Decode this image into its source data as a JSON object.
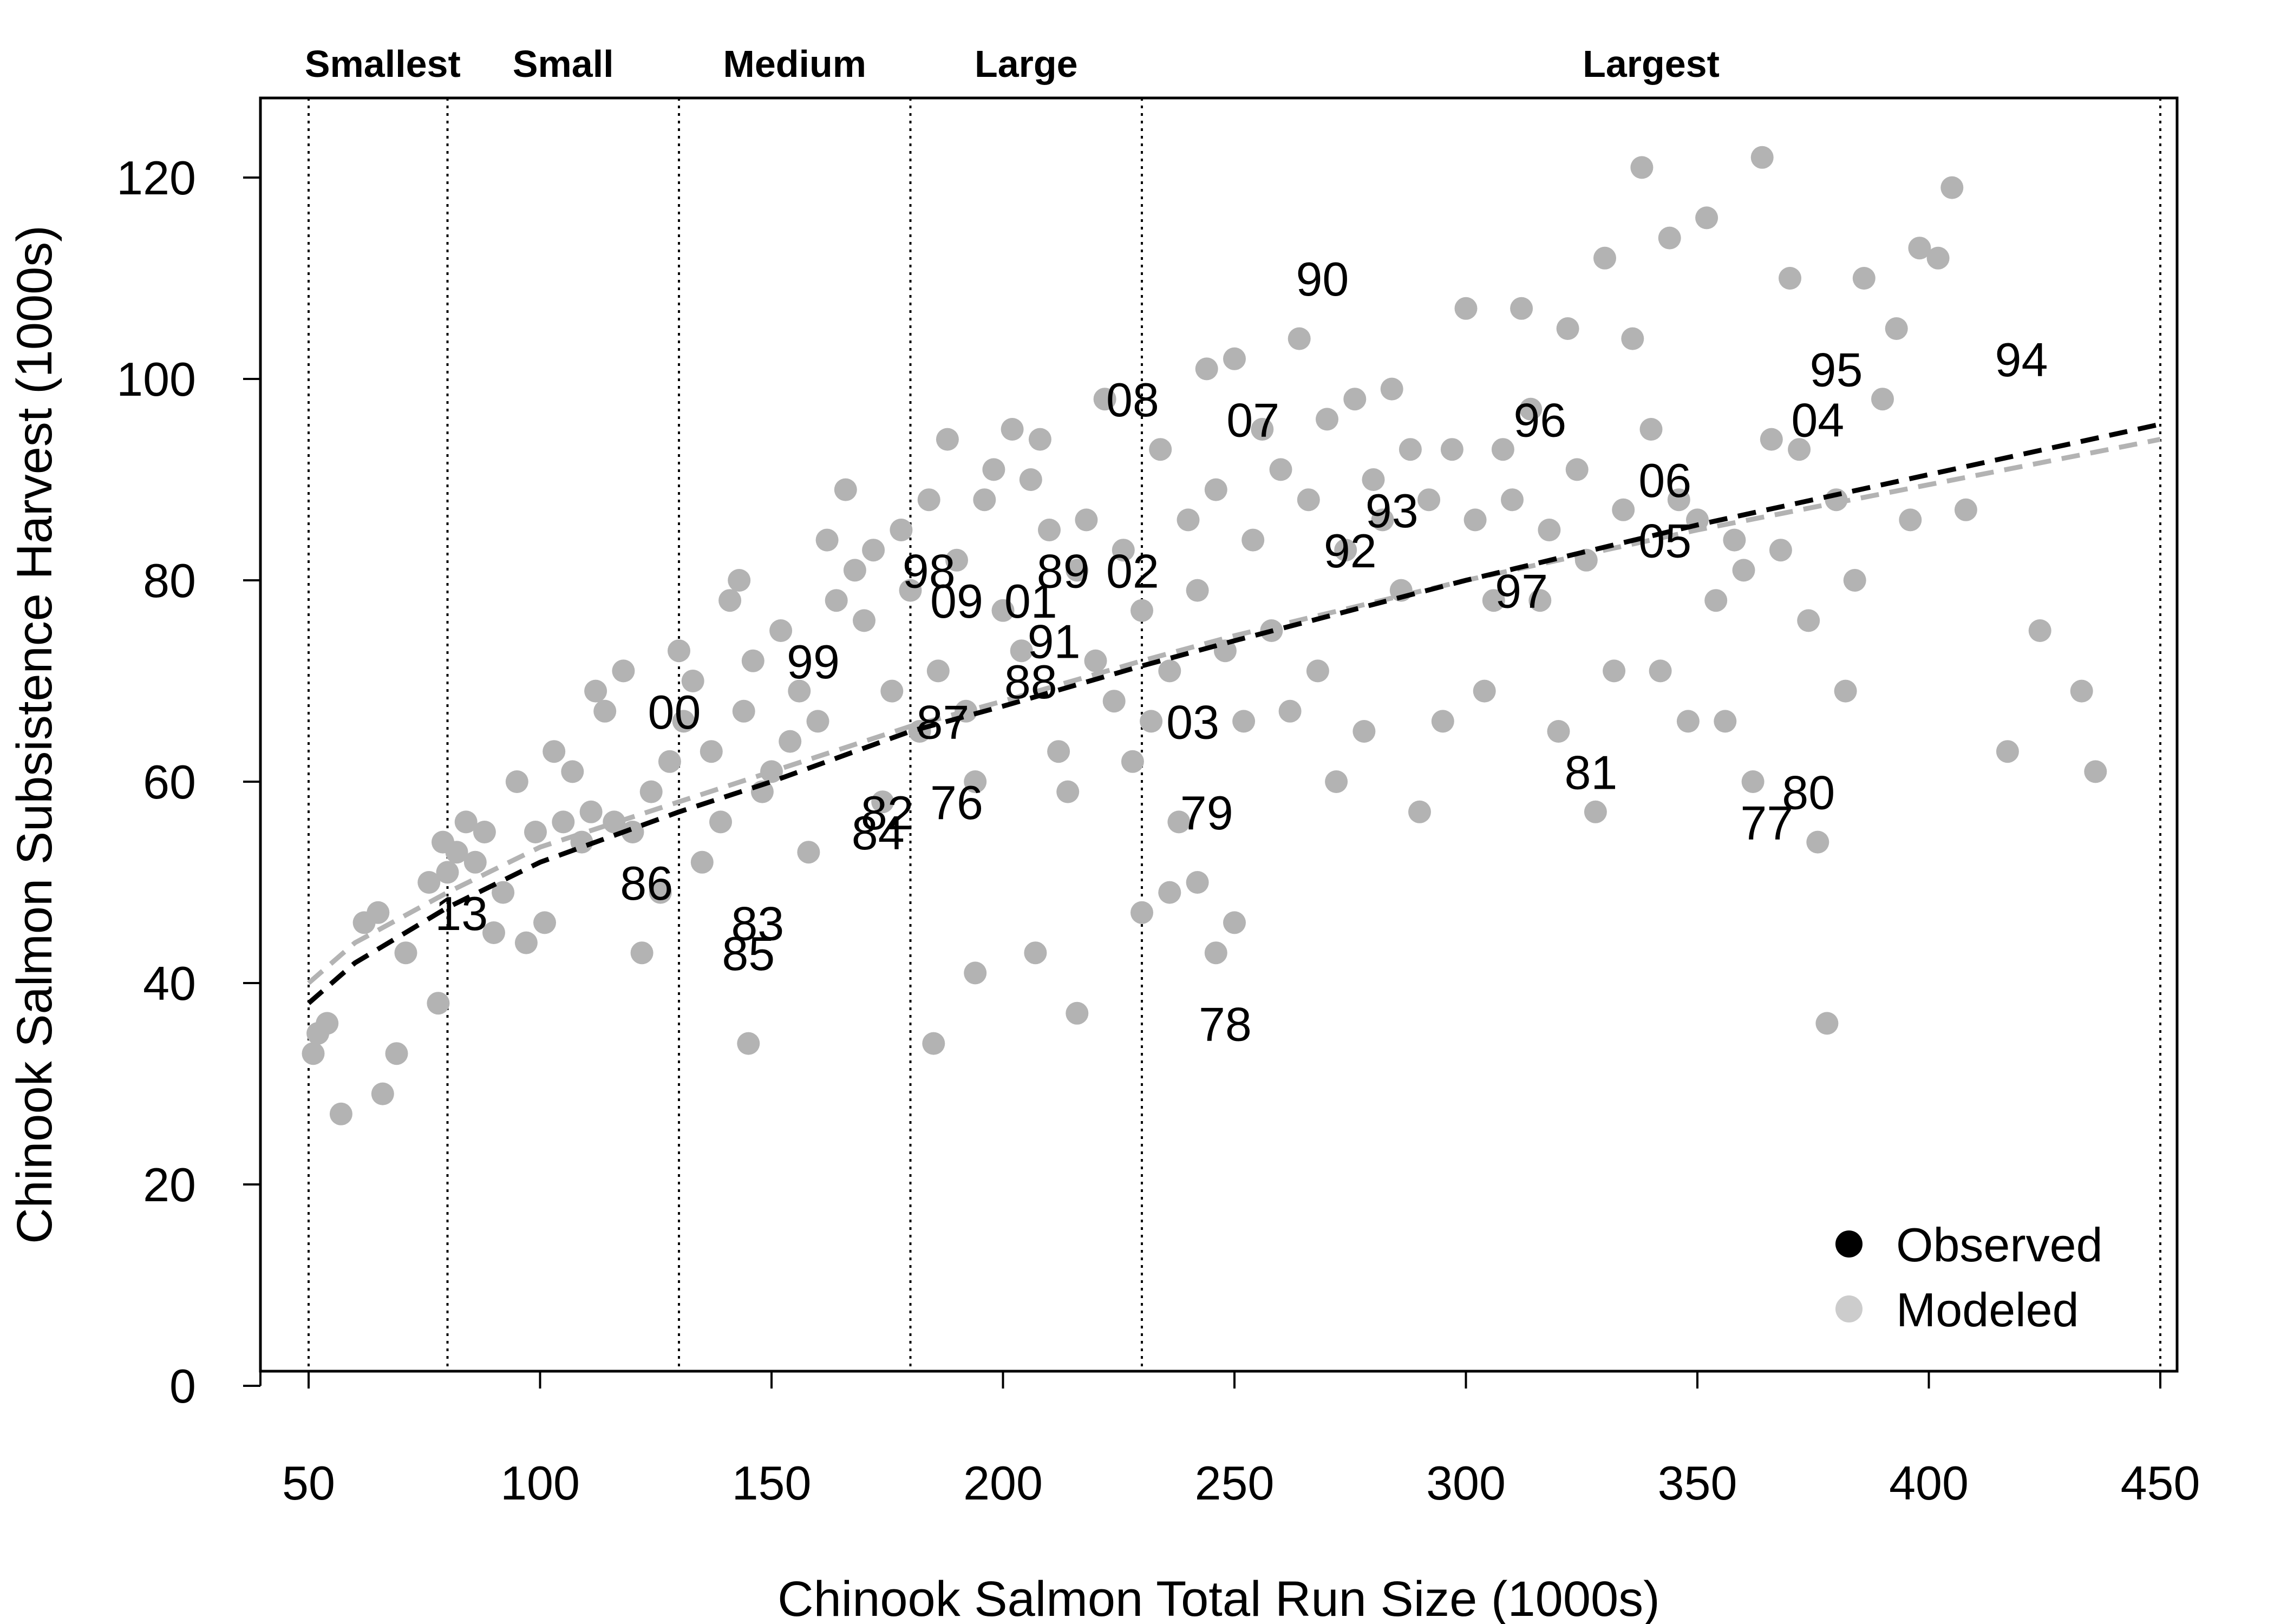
{
  "chart_data": {
    "type": "scatter",
    "xlabel": "Chinook Salmon Total Run Size (1000s)",
    "ylabel": "Chinook Salmon Subsistence Harvest (1000s)",
    "xlim": [
      40,
      455
    ],
    "ylim": [
      0,
      128
    ],
    "xticks": [
      50,
      100,
      150,
      200,
      250,
      300,
      350,
      400,
      450
    ],
    "yticks": [
      0,
      20,
      40,
      60,
      80,
      100,
      120
    ],
    "grid": false,
    "legend_position": "bottom-right",
    "legend": [
      {
        "label": "Observed",
        "color": "#000000"
      },
      {
        "label": "Modeled",
        "color": "#cccccc"
      }
    ],
    "categories": [
      {
        "label": "Smallest",
        "from": 50,
        "to": 80
      },
      {
        "label": "Small",
        "from": 80,
        "to": 130
      },
      {
        "label": "Medium",
        "from": 130,
        "to": 180
      },
      {
        "label": "Large",
        "from": 180,
        "to": 230
      },
      {
        "label": "Largest",
        "from": 230,
        "to": 450
      }
    ],
    "boundaries": [
      50,
      80,
      130,
      180,
      230,
      450
    ],
    "modeled_points": [
      [
        51,
        33
      ],
      [
        52,
        35
      ],
      [
        54,
        36
      ],
      [
        57,
        27
      ],
      [
        62,
        46
      ],
      [
        65,
        47
      ],
      [
        66,
        29
      ],
      [
        69,
        33
      ],
      [
        71,
        43
      ],
      [
        76,
        50
      ],
      [
        78,
        38
      ],
      [
        79,
        54
      ],
      [
        80,
        51
      ],
      [
        82,
        53
      ],
      [
        84,
        56
      ],
      [
        86,
        52
      ],
      [
        88,
        55
      ],
      [
        90,
        45
      ],
      [
        92,
        49
      ],
      [
        95,
        60
      ],
      [
        97,
        44
      ],
      [
        99,
        55
      ],
      [
        101,
        46
      ],
      [
        103,
        63
      ],
      [
        105,
        56
      ],
      [
        107,
        61
      ],
      [
        109,
        54
      ],
      [
        111,
        57
      ],
      [
        112,
        69
      ],
      [
        114,
        67
      ],
      [
        116,
        56
      ],
      [
        118,
        71
      ],
      [
        120,
        55
      ],
      [
        122,
        43
      ],
      [
        124,
        59
      ],
      [
        126,
        49
      ],
      [
        128,
        62
      ],
      [
        130,
        73
      ],
      [
        131,
        66
      ],
      [
        133,
        70
      ],
      [
        135,
        52
      ],
      [
        137,
        63
      ],
      [
        139,
        56
      ],
      [
        141,
        78
      ],
      [
        143,
        80
      ],
      [
        144,
        67
      ],
      [
        146,
        72
      ],
      [
        148,
        59
      ],
      [
        150,
        61
      ],
      [
        152,
        75
      ],
      [
        154,
        64
      ],
      [
        156,
        69
      ],
      [
        158,
        53
      ],
      [
        160,
        66
      ],
      [
        162,
        84
      ],
      [
        164,
        78
      ],
      [
        166,
        89
      ],
      [
        168,
        81
      ],
      [
        170,
        76
      ],
      [
        172,
        83
      ],
      [
        174,
        58
      ],
      [
        176,
        69
      ],
      [
        178,
        85
      ],
      [
        180,
        79
      ],
      [
        182,
        65
      ],
      [
        184,
        88
      ],
      [
        186,
        71
      ],
      [
        188,
        94
      ],
      [
        190,
        82
      ],
      [
        192,
        67
      ],
      [
        194,
        60
      ],
      [
        196,
        88
      ],
      [
        198,
        91
      ],
      [
        200,
        77
      ],
      [
        202,
        95
      ],
      [
        204,
        73
      ],
      [
        206,
        90
      ],
      [
        208,
        94
      ],
      [
        210,
        85
      ],
      [
        212,
        63
      ],
      [
        214,
        59
      ],
      [
        216,
        81
      ],
      [
        218,
        86
      ],
      [
        220,
        72
      ],
      [
        222,
        98
      ],
      [
        224,
        68
      ],
      [
        226,
        83
      ],
      [
        228,
        62
      ],
      [
        230,
        77
      ],
      [
        232,
        66
      ],
      [
        234,
        93
      ],
      [
        236,
        71
      ],
      [
        238,
        56
      ],
      [
        240,
        86
      ],
      [
        242,
        79
      ],
      [
        244,
        101
      ],
      [
        246,
        89
      ],
      [
        248,
        73
      ],
      [
        250,
        102
      ],
      [
        252,
        66
      ],
      [
        254,
        84
      ],
      [
        256,
        95
      ],
      [
        258,
        75
      ],
      [
        260,
        91
      ],
      [
        262,
        67
      ],
      [
        264,
        104
      ],
      [
        266,
        88
      ],
      [
        268,
        71
      ],
      [
        270,
        96
      ],
      [
        272,
        60
      ],
      [
        274,
        83
      ],
      [
        276,
        98
      ],
      [
        278,
        65
      ],
      [
        280,
        90
      ],
      [
        282,
        86
      ],
      [
        284,
        99
      ],
      [
        286,
        79
      ],
      [
        288,
        93
      ],
      [
        290,
        57
      ],
      [
        292,
        88
      ],
      [
        295,
        66
      ],
      [
        297,
        93
      ],
      [
        300,
        107
      ],
      [
        302,
        86
      ],
      [
        304,
        69
      ],
      [
        306,
        78
      ],
      [
        308,
        93
      ],
      [
        310,
        88
      ],
      [
        312,
        107
      ],
      [
        314,
        97
      ],
      [
        316,
        78
      ],
      [
        318,
        85
      ],
      [
        320,
        65
      ],
      [
        322,
        105
      ],
      [
        324,
        91
      ],
      [
        326,
        82
      ],
      [
        328,
        57
      ],
      [
        330,
        112
      ],
      [
        332,
        71
      ],
      [
        334,
        87
      ],
      [
        336,
        104
      ],
      [
        338,
        121
      ],
      [
        340,
        95
      ],
      [
        342,
        71
      ],
      [
        344,
        114
      ],
      [
        346,
        88
      ],
      [
        348,
        66
      ],
      [
        350,
        86
      ],
      [
        352,
        116
      ],
      [
        354,
        78
      ],
      [
        356,
        66
      ],
      [
        358,
        84
      ],
      [
        360,
        81
      ],
      [
        362,
        60
      ],
      [
        364,
        122
      ],
      [
        366,
        94
      ],
      [
        368,
        83
      ],
      [
        370,
        110
      ],
      [
        372,
        93
      ],
      [
        374,
        76
      ],
      [
        376,
        54
      ],
      [
        378,
        36
      ],
      [
        380,
        88
      ],
      [
        382,
        69
      ],
      [
        384,
        80
      ],
      [
        386,
        110
      ],
      [
        390,
        98
      ],
      [
        393,
        105
      ],
      [
        396,
        86
      ],
      [
        398,
        113
      ],
      [
        402,
        112
      ],
      [
        405,
        119
      ],
      [
        408,
        87
      ],
      [
        417,
        63
      ],
      [
        424,
        75
      ],
      [
        433,
        69
      ],
      [
        436,
        61
      ],
      [
        145,
        34
      ],
      [
        185,
        34
      ],
      [
        194,
        41
      ],
      [
        207,
        43
      ],
      [
        216,
        37
      ],
      [
        230,
        47
      ],
      [
        236,
        49
      ],
      [
        242,
        50
      ],
      [
        246,
        43
      ],
      [
        250,
        46
      ]
    ],
    "observed_curve": {
      "x": [
        50,
        60,
        80,
        100,
        130,
        150,
        180,
        200,
        230,
        250,
        300,
        350,
        400,
        450
      ],
      "y": [
        38,
        42,
        47.5,
        52,
        57,
        60,
        65,
        67.5,
        71.5,
        74,
        80,
        85.5,
        90.5,
        95.5
      ]
    },
    "modeled_curve": {
      "x": [
        50,
        60,
        80,
        100,
        130,
        150,
        180,
        200,
        230,
        250,
        300,
        350,
        400,
        450
      ],
      "y": [
        40,
        44,
        49,
        53.5,
        58,
        61,
        65.5,
        68,
        72,
        74.5,
        80,
        85,
        89.5,
        94
      ]
    },
    "annotations": [
      {
        "text": "13",
        "x": 83,
        "y": 47
      },
      {
        "text": "86",
        "x": 123,
        "y": 50
      },
      {
        "text": "00",
        "x": 129,
        "y": 67
      },
      {
        "text": "83",
        "x": 147,
        "y": 46
      },
      {
        "text": "85",
        "x": 145,
        "y": 43
      },
      {
        "text": "99",
        "x": 159,
        "y": 72
      },
      {
        "text": "82",
        "x": 175,
        "y": 57
      },
      {
        "text": "84",
        "x": 173,
        "y": 55
      },
      {
        "text": "76",
        "x": 190,
        "y": 58
      },
      {
        "text": "87",
        "x": 187,
        "y": 66
      },
      {
        "text": "98",
        "x": 184,
        "y": 81
      },
      {
        "text": "09",
        "x": 190,
        "y": 78
      },
      {
        "text": "01",
        "x": 206,
        "y": 78
      },
      {
        "text": "89",
        "x": 213,
        "y": 81
      },
      {
        "text": "02",
        "x": 228,
        "y": 81
      },
      {
        "text": "91",
        "x": 211,
        "y": 74
      },
      {
        "text": "88",
        "x": 206,
        "y": 70
      },
      {
        "text": "03",
        "x": 241,
        "y": 66
      },
      {
        "text": "79",
        "x": 244,
        "y": 57
      },
      {
        "text": "78",
        "x": 248,
        "y": 36
      },
      {
        "text": "08",
        "x": 228,
        "y": 98
      },
      {
        "text": "07",
        "x": 254,
        "y": 96
      },
      {
        "text": "90",
        "x": 269,
        "y": 110
      },
      {
        "text": "92",
        "x": 275,
        "y": 83
      },
      {
        "text": "93",
        "x": 284,
        "y": 87
      },
      {
        "text": "97",
        "x": 312,
        "y": 79
      },
      {
        "text": "96",
        "x": 316,
        "y": 96
      },
      {
        "text": "81",
        "x": 327,
        "y": 61
      },
      {
        "text": "06",
        "x": 343,
        "y": 90
      },
      {
        "text": "05",
        "x": 343,
        "y": 84
      },
      {
        "text": "77",
        "x": 365,
        "y": 56
      },
      {
        "text": "80",
        "x": 374,
        "y": 59
      },
      {
        "text": "04",
        "x": 376,
        "y": 96
      },
      {
        "text": "95",
        "x": 380,
        "y": 101
      },
      {
        "text": "94",
        "x": 420,
        "y": 102
      }
    ],
    "colors": {
      "modeled_point": "#b3b3b3",
      "observed_line": "#000000",
      "modeled_line": "#b3b3b3",
      "legend_observed": "#000000",
      "legend_modeled": "#cccccc"
    }
  }
}
